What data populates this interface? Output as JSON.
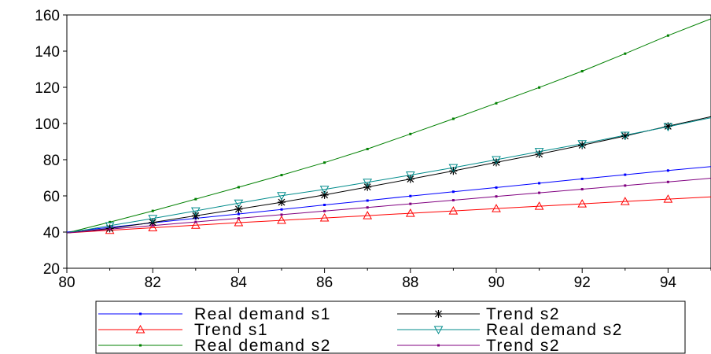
{
  "chart_data": {
    "type": "line",
    "title": "",
    "xlabel": "",
    "ylabel": "",
    "xlim": [
      80,
      95
    ],
    "ylim": [
      20,
      160
    ],
    "x_ticks": [
      "80",
      "82",
      "84",
      "86",
      "88",
      "90",
      "92",
      "94"
    ],
    "y_ticks": [
      "20",
      "40",
      "60",
      "80",
      "100",
      "120",
      "140",
      "160"
    ],
    "grid": false,
    "legend_position": "bottom",
    "x": [
      80,
      81,
      82,
      83,
      84,
      85,
      86,
      87,
      88,
      89,
      90,
      91,
      92,
      93,
      94,
      95
    ],
    "series": [
      {
        "name": "Real demand s1",
        "color": "#0000ff",
        "marker": "dot",
        "values": [
          40,
          42.6,
          45.1,
          47.6,
          50.0,
          52.5,
          55.0,
          57.4,
          59.9,
          62.3,
          64.6,
          67.0,
          69.4,
          71.7,
          74.0,
          76.2
        ]
      },
      {
        "name": "Trend s1",
        "color": "#ff0000",
        "marker": "triangle-up",
        "values": [
          39.5,
          41.0,
          42.4,
          43.8,
          45.2,
          46.5,
          47.8,
          49.1,
          50.4,
          51.7,
          53.0,
          54.3,
          55.6,
          56.9,
          58.2,
          59.5
        ]
      },
      {
        "name": "Real demand s2",
        "color": "#008000",
        "marker": "dot",
        "values": [
          39.5,
          45.5,
          51.7,
          58.2,
          64.8,
          71.5,
          78.4,
          85.9,
          94.2,
          102.6,
          111.2,
          119.9,
          128.9,
          138.6,
          148.6,
          157.9
        ]
      },
      {
        "name": "Trend s2",
        "color": "#000000",
        "marker": "star",
        "values": [
          39.5,
          42.0,
          45.3,
          49.0,
          52.7,
          56.5,
          60.5,
          64.9,
          69.3,
          73.8,
          78.5,
          83.1,
          88.0,
          93.1,
          98.5,
          103.8
        ]
      },
      {
        "name": "Real demand s2",
        "color": "#008b8b",
        "marker": "triangle-down",
        "values": [
          39.5,
          43.5,
          47.5,
          51.7,
          56.0,
          60.1,
          63.6,
          67.5,
          71.5,
          75.6,
          80.0,
          84.5,
          88.8,
          93.5,
          98.2,
          103.2
        ]
      },
      {
        "name": "Trend s2",
        "color": "#800080",
        "marker": "dot",
        "values": [
          39.5,
          41.6,
          43.6,
          45.6,
          47.6,
          49.6,
          51.6,
          53.6,
          55.6,
          57.6,
          59.7,
          61.7,
          63.7,
          65.7,
          67.7,
          69.8
        ]
      }
    ]
  }
}
